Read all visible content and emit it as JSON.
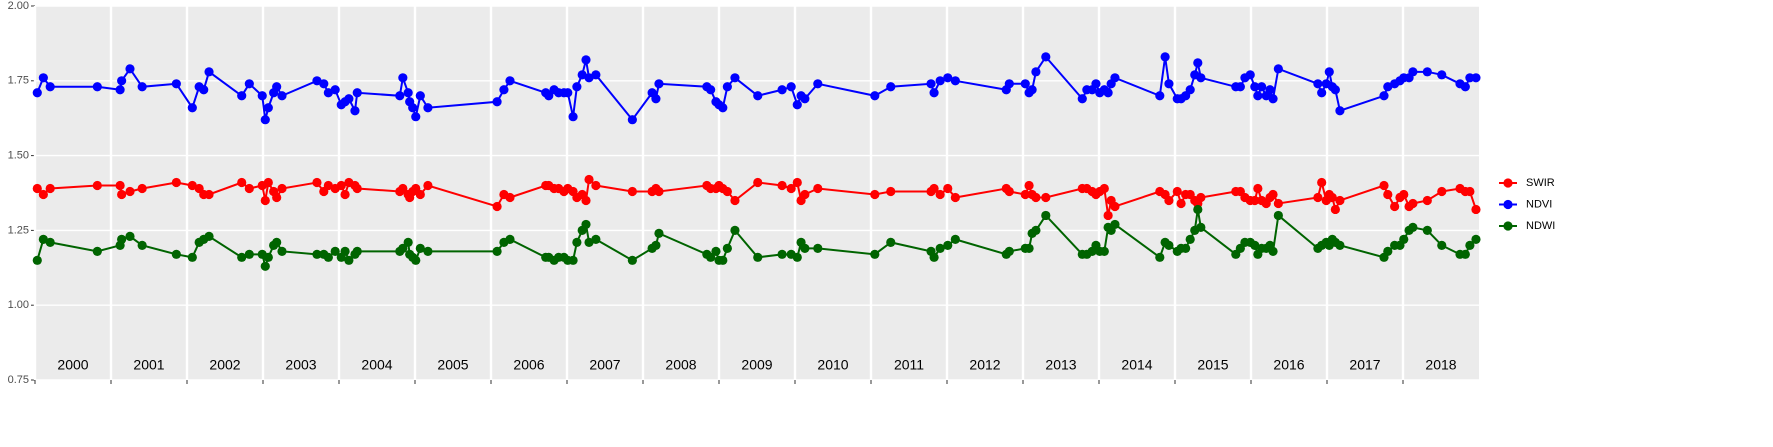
{
  "chart_data": {
    "type": "line",
    "x": [
      2000.03,
      2000.11,
      2000.2,
      2000.82,
      2001.12,
      2001.14,
      2001.25,
      2001.41,
      2001.86,
      2002.07,
      2002.16,
      2002.22,
      2002.29,
      2002.72,
      2002.82,
      2002.99,
      2003.03,
      2003.07,
      2003.14,
      2003.18,
      2003.25,
      2003.71,
      2003.8,
      2003.86,
      2003.95,
      2004.03,
      2004.08,
      2004.13,
      2004.21,
      2004.24,
      2004.8,
      2004.84,
      2004.91,
      2004.93,
      2004.97,
      2005.01,
      2005.07,
      2005.17,
      2006.08,
      2006.17,
      2006.25,
      2006.72,
      2006.76,
      2006.83,
      2006.89,
      2006.96,
      2007.01,
      2007.08,
      2007.13,
      2007.2,
      2007.25,
      2007.29,
      2007.38,
      2007.86,
      2008.12,
      2008.17,
      2008.21,
      2008.84,
      2008.89,
      2008.96,
      2009.0,
      2009.05,
      2009.11,
      2009.21,
      2009.51,
      2009.83,
      2009.95,
      2010.03,
      2010.08,
      2010.13,
      2010.3,
      2011.05,
      2011.26,
      2011.79,
      2011.83,
      2011.91,
      2012.01,
      2012.11,
      2012.78,
      2012.82,
      2013.03,
      2013.08,
      2013.12,
      2013.17,
      2013.3,
      2013.78,
      2013.84,
      2013.91,
      2013.96,
      2014.01,
      2014.07,
      2014.12,
      2014.16,
      2014.21,
      2014.8,
      2014.87,
      2014.92,
      2015.03,
      2015.08,
      2015.14,
      2015.2,
      2015.26,
      2015.3,
      2015.34,
      2015.8,
      2015.86,
      2015.92,
      2015.99,
      2016.05,
      2016.09,
      2016.14,
      2016.2,
      2016.25,
      2016.29,
      2016.36,
      2016.88,
      2016.93,
      2016.99,
      2017.03,
      2017.07,
      2017.11,
      2017.17,
      2017.75,
      2017.8,
      2017.89,
      2017.96,
      2018.01,
      2018.08,
      2018.13,
      2018.32,
      2018.51,
      2018.75,
      2018.82,
      2018.88,
      2018.96
    ],
    "series": [
      {
        "name": "SWIR",
        "color": "#ff0000",
        "values": [
          1.39,
          1.37,
          1.39,
          1.4,
          1.4,
          1.37,
          1.38,
          1.39,
          1.41,
          1.4,
          1.39,
          1.37,
          1.37,
          1.41,
          1.39,
          1.4,
          1.35,
          1.41,
          1.38,
          1.36,
          1.39,
          1.41,
          1.38,
          1.4,
          1.39,
          1.4,
          1.37,
          1.41,
          1.4,
          1.39,
          1.38,
          1.39,
          1.37,
          1.36,
          1.38,
          1.39,
          1.37,
          1.4,
          1.33,
          1.37,
          1.36,
          1.4,
          1.4,
          1.39,
          1.39,
          1.38,
          1.39,
          1.38,
          1.36,
          1.37,
          1.35,
          1.42,
          1.4,
          1.38,
          1.38,
          1.39,
          1.38,
          1.4,
          1.39,
          1.39,
          1.4,
          1.39,
          1.38,
          1.35,
          1.41,
          1.4,
          1.39,
          1.41,
          1.35,
          1.37,
          1.39,
          1.37,
          1.38,
          1.38,
          1.39,
          1.37,
          1.39,
          1.36,
          1.39,
          1.38,
          1.37,
          1.4,
          1.37,
          1.36,
          1.36,
          1.39,
          1.39,
          1.38,
          1.37,
          1.38,
          1.39,
          1.3,
          1.35,
          1.33,
          1.38,
          1.37,
          1.35,
          1.38,
          1.34,
          1.37,
          1.37,
          1.35,
          1.34,
          1.36,
          1.38,
          1.38,
          1.36,
          1.35,
          1.35,
          1.39,
          1.35,
          1.34,
          1.36,
          1.37,
          1.34,
          1.36,
          1.41,
          1.35,
          1.37,
          1.36,
          1.32,
          1.35,
          1.4,
          1.37,
          1.33,
          1.36,
          1.37,
          1.33,
          1.34,
          1.35,
          1.38,
          1.39,
          1.38,
          1.38,
          1.32
        ]
      },
      {
        "name": "NDVI",
        "color": "#0000ff",
        "values": [
          1.71,
          1.76,
          1.73,
          1.73,
          1.72,
          1.75,
          1.79,
          1.73,
          1.74,
          1.66,
          1.73,
          1.72,
          1.78,
          1.7,
          1.74,
          1.7,
          1.62,
          1.66,
          1.71,
          1.73,
          1.7,
          1.75,
          1.74,
          1.71,
          1.72,
          1.67,
          1.68,
          1.69,
          1.65,
          1.71,
          1.7,
          1.76,
          1.71,
          1.68,
          1.66,
          1.63,
          1.7,
          1.66,
          1.68,
          1.72,
          1.75,
          1.71,
          1.7,
          1.72,
          1.71,
          1.71,
          1.71,
          1.63,
          1.73,
          1.77,
          1.82,
          1.76,
          1.77,
          1.62,
          1.71,
          1.69,
          1.74,
          1.73,
          1.72,
          1.68,
          1.67,
          1.66,
          1.73,
          1.76,
          1.7,
          1.72,
          1.73,
          1.67,
          1.7,
          1.69,
          1.74,
          1.7,
          1.73,
          1.74,
          1.71,
          1.75,
          1.76,
          1.75,
          1.72,
          1.74,
          1.74,
          1.71,
          1.72,
          1.78,
          1.83,
          1.69,
          1.72,
          1.72,
          1.74,
          1.71,
          1.72,
          1.71,
          1.74,
          1.76,
          1.7,
          1.83,
          1.74,
          1.69,
          1.69,
          1.7,
          1.72,
          1.77,
          1.81,
          1.76,
          1.73,
          1.73,
          1.76,
          1.77,
          1.73,
          1.7,
          1.73,
          1.7,
          1.72,
          1.69,
          1.79,
          1.74,
          1.71,
          1.74,
          1.78,
          1.73,
          1.72,
          1.65,
          1.7,
          1.73,
          1.74,
          1.75,
          1.76,
          1.76,
          1.78,
          1.78,
          1.77,
          1.74,
          1.73,
          1.76,
          1.76
        ]
      },
      {
        "name": "NDWI",
        "color": "#006400",
        "values": [
          1.15,
          1.22,
          1.21,
          1.18,
          1.2,
          1.22,
          1.23,
          1.2,
          1.17,
          1.16,
          1.21,
          1.22,
          1.23,
          1.16,
          1.17,
          1.17,
          1.13,
          1.16,
          1.2,
          1.21,
          1.18,
          1.17,
          1.17,
          1.16,
          1.18,
          1.16,
          1.18,
          1.15,
          1.17,
          1.18,
          1.18,
          1.19,
          1.21,
          1.17,
          1.16,
          1.15,
          1.19,
          1.18,
          1.18,
          1.21,
          1.22,
          1.16,
          1.16,
          1.15,
          1.16,
          1.16,
          1.15,
          1.15,
          1.21,
          1.25,
          1.27,
          1.21,
          1.22,
          1.15,
          1.19,
          1.2,
          1.24,
          1.17,
          1.16,
          1.18,
          1.15,
          1.15,
          1.19,
          1.25,
          1.16,
          1.17,
          1.17,
          1.16,
          1.21,
          1.19,
          1.19,
          1.17,
          1.21,
          1.18,
          1.16,
          1.19,
          1.2,
          1.22,
          1.17,
          1.18,
          1.19,
          1.19,
          1.24,
          1.25,
          1.3,
          1.17,
          1.17,
          1.18,
          1.2,
          1.18,
          1.18,
          1.26,
          1.25,
          1.27,
          1.16,
          1.21,
          1.2,
          1.18,
          1.19,
          1.19,
          1.22,
          1.25,
          1.32,
          1.26,
          1.17,
          1.19,
          1.21,
          1.21,
          1.2,
          1.17,
          1.19,
          1.19,
          1.2,
          1.18,
          1.3,
          1.19,
          1.2,
          1.21,
          1.2,
          1.22,
          1.21,
          1.2,
          1.16,
          1.18,
          1.2,
          1.2,
          1.22,
          1.25,
          1.26,
          1.25,
          1.2,
          1.17,
          1.17,
          1.2,
          1.22
        ]
      }
    ],
    "xlim": [
      2000,
      2019
    ],
    "xticks": [
      2000,
      2001,
      2002,
      2003,
      2004,
      2005,
      2006,
      2007,
      2008,
      2009,
      2010,
      2011,
      2012,
      2013,
      2014,
      2015,
      2016,
      2017,
      2018
    ],
    "year_labels": [
      "2000",
      "2001",
      "2002",
      "2003",
      "2004",
      "2005",
      "2006",
      "2007",
      "2008",
      "2009",
      "2010",
      "2011",
      "2012",
      "2013",
      "2014",
      "2015",
      "2016",
      "2017",
      "2018"
    ],
    "ylim": [
      0.75,
      2.0
    ],
    "yticks": [
      {
        "value": 0.75,
        "label": "0.75"
      },
      {
        "value": 1.0,
        "label": "1.00"
      },
      {
        "value": 1.25,
        "label": "1.25"
      },
      {
        "value": 1.5,
        "label": "1.50"
      },
      {
        "value": 1.75,
        "label": "1.75"
      },
      {
        "value": 2.0,
        "label": "2.00"
      }
    ],
    "grid": true,
    "legend": "right"
  }
}
